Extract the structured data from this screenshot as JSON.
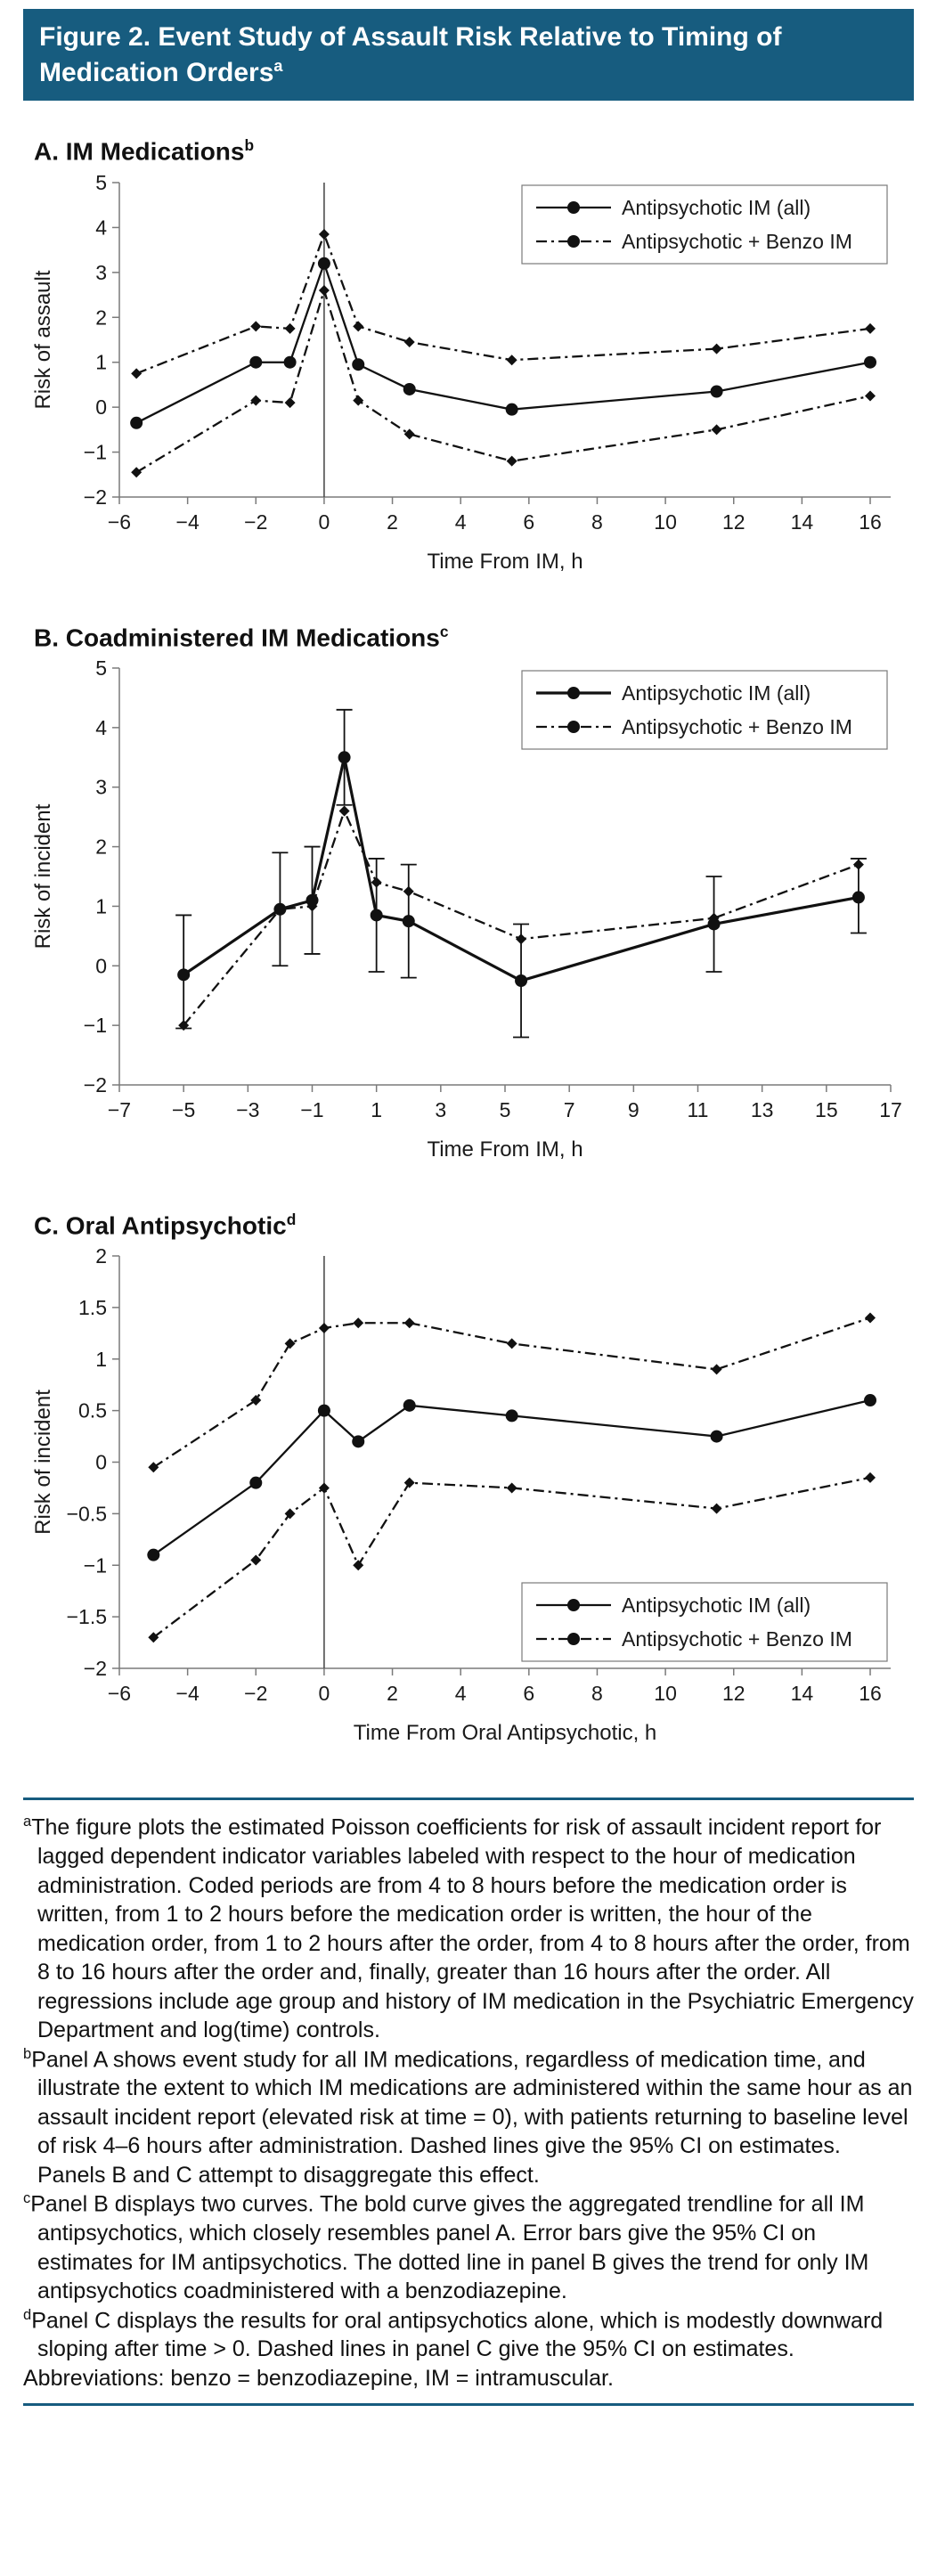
{
  "header": {
    "title_line1": "Figure 2. Event Study of Assault Risk Relative to Timing of",
    "title_line2": "Medication Orders",
    "title_sup": "a",
    "background": "#175C7F"
  },
  "chart_data": [
    {
      "type": "line",
      "panel": "A",
      "title": "A. IM Medications",
      "title_sup": "b",
      "xlabel": "Time From IM, h",
      "ylabel": "Risk of assault",
      "xlim": [
        -6,
        16.6
      ],
      "ylim": [
        -2,
        5
      ],
      "xticks": [
        -6,
        -4,
        -2,
        0,
        2,
        4,
        6,
        8,
        10,
        12,
        14,
        16
      ],
      "yticks": [
        -2,
        -1,
        0,
        1,
        2,
        3,
        4,
        5
      ],
      "vline_x": 0,
      "grid": false,
      "legend_position": "top-right",
      "series": [
        {
          "name": "Antipsychotic IM (all)",
          "style": "solid",
          "marker": "circle",
          "x": [
            -5.5,
            -2,
            -1,
            0,
            1,
            2.5,
            5.5,
            11.5,
            16
          ],
          "y": [
            -0.35,
            1.0,
            1.0,
            3.2,
            0.95,
            0.4,
            -0.05,
            0.35,
            1.0
          ]
        },
        {
          "name": "Antipsychotic + Benzo IM",
          "style": "dashed",
          "marker": "diamond",
          "x": [
            -5.5,
            -2,
            -1,
            0,
            1,
            2.5,
            5.5,
            11.5,
            16
          ],
          "y": [
            0.75,
            1.8,
            1.75,
            3.85,
            1.8,
            1.45,
            1.05,
            1.3,
            1.75
          ]
        },
        {
          "id": "ci_lower",
          "style": "dashed",
          "marker": "diamond",
          "x": [
            -5.5,
            -2,
            -1,
            0,
            1,
            2.5,
            5.5,
            11.5,
            16
          ],
          "y": [
            -1.45,
            0.15,
            0.1,
            2.6,
            0.15,
            -0.6,
            -1.2,
            -0.5,
            0.25
          ]
        }
      ]
    },
    {
      "type": "line",
      "panel": "B",
      "title": "B. Coadministered IM Medications",
      "title_sup": "c",
      "xlabel": "Time From IM, h",
      "ylabel": "Risk of incident",
      "xlim": [
        -7,
        17
      ],
      "ylim": [
        -2,
        5
      ],
      "xticks": [
        -7,
        -5,
        -3,
        -1,
        1,
        3,
        5,
        7,
        9,
        11,
        13,
        15,
        17
      ],
      "yticks": [
        -2,
        -1,
        0,
        1,
        2,
        3,
        4,
        5
      ],
      "grid": false,
      "legend_position": "top-right",
      "series": [
        {
          "name": "Antipsychotic IM (all)",
          "style": "solid",
          "marker": "circle",
          "line_width": 3.2,
          "x": [
            -5,
            -2,
            -1,
            0,
            1,
            2,
            5.5,
            11.5,
            16
          ],
          "y": [
            -0.15,
            0.95,
            1.1,
            3.5,
            0.85,
            0.75,
            -0.25,
            0.7,
            1.15
          ],
          "error_low": [
            -1.05,
            0.0,
            0.2,
            2.7,
            -0.1,
            -0.2,
            -1.2,
            -0.1,
            0.55
          ],
          "error_high": [
            0.85,
            1.9,
            2.0,
            4.3,
            1.8,
            1.7,
            0.7,
            1.5,
            1.8
          ]
        },
        {
          "name": "Antipsychotic + Benzo IM",
          "style": "dashed",
          "marker": "diamond",
          "x": [
            -5,
            -2,
            -1,
            0,
            1,
            2,
            5.5,
            11.5,
            16
          ],
          "y": [
            -1.0,
            0.95,
            1.0,
            2.6,
            1.4,
            1.25,
            0.45,
            0.8,
            1.7
          ]
        }
      ]
    },
    {
      "type": "line",
      "panel": "C",
      "title": "C. Oral Antipsychotic",
      "title_sup": "d",
      "xlabel": "Time From Oral Antipsychotic, h",
      "ylabel": "Risk of incident",
      "xlim": [
        -6,
        16.6
      ],
      "ylim": [
        -2,
        2
      ],
      "xticks": [
        -6,
        -4,
        -2,
        0,
        2,
        4,
        6,
        8,
        10,
        12,
        14,
        16
      ],
      "yticks": [
        -2,
        -1.5,
        -1,
        -0.5,
        0,
        0.5,
        1,
        1.5,
        2
      ],
      "vline_x": 0,
      "grid": false,
      "legend_position": "bottom-right",
      "series": [
        {
          "name": "Antipsychotic IM (all)",
          "style": "solid",
          "marker": "circle",
          "x": [
            -5,
            -2,
            0,
            1,
            2.5,
            5.5,
            11.5,
            16
          ],
          "y": [
            -0.9,
            -0.2,
            0.5,
            0.2,
            0.55,
            0.45,
            0.25,
            0.6
          ]
        },
        {
          "name": "Antipsychotic + Benzo IM",
          "style": "dashed",
          "marker": "diamond",
          "x": [
            -5,
            -2,
            -1,
            0,
            1,
            2.5,
            5.5,
            11.5,
            16
          ],
          "y": [
            -0.05,
            0.6,
            1.15,
            1.3,
            1.35,
            1.35,
            1.15,
            0.9,
            1.4
          ]
        },
        {
          "id": "ci_lower",
          "style": "dashed",
          "marker": "diamond",
          "x": [
            -5,
            -2,
            -1,
            0,
            1,
            2.5,
            5.5,
            11.5,
            16
          ],
          "y": [
            -1.7,
            -0.95,
            -0.5,
            -0.25,
            -1.0,
            -0.2,
            -0.25,
            -0.45,
            -0.15
          ]
        }
      ]
    }
  ],
  "footnotes": [
    {
      "sup": "a",
      "text": "The figure plots the estimated Poisson coefficients for risk of assault incident report for lagged dependent indicator variables labeled with respect to the hour of medication administration. Coded periods are from 4 to 8 hours before the medication order is written, from 1 to 2 hours before the medication order is written, the hour of the medication order, from 1 to 2 hours after the order, from 4 to 8 hours after the order, from 8 to 16 hours after the order and, finally, greater than 16 hours after the order. All regressions include age group and history of IM medication in the Psychiatric Emergency Department and log(time) controls."
    },
    {
      "sup": "b",
      "text": "Panel A shows event study for all IM medications, regardless of medication time, and illustrate the extent to which IM medications are administered within the same hour as an assault incident report (elevated risk at time = 0), with patients returning to baseline level of risk 4–6 hours after administration. Dashed lines give the 95% CI on estimates. Panels B and C attempt to disaggregate this effect."
    },
    {
      "sup": "c",
      "text": "Panel B displays two curves. The bold curve gives the aggregated trendline for all IM antipsychotics, which closely resembles panel A. Error bars give the 95% CI on estimates for IM antipsychotics. The dotted line in panel B gives the trend for only IM antipsychotics coadministered with a benzodiazepine."
    },
    {
      "sup": "d",
      "text": "Panel C displays the results for oral antipsychotics alone, which is modestly downward sloping after time > 0. Dashed lines in panel C give the 95% CI on estimates."
    }
  ],
  "abbreviations": "Abbreviations: benzo = benzodiazepine, IM = intramuscular."
}
